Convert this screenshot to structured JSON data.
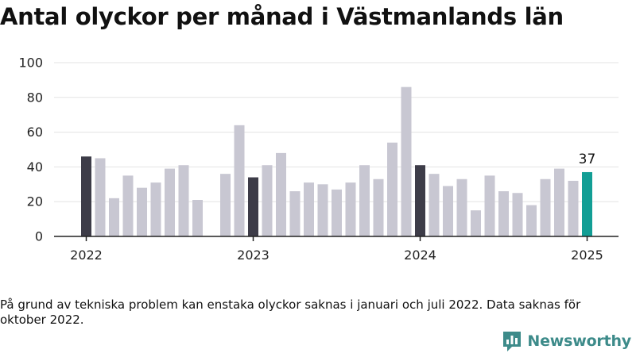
{
  "header": {
    "title": "Antal olyckor per månad i Västmanlands län"
  },
  "footer": {
    "note": "På grund av tekniska problem kan enstaka olyckor saknas i januari och juli 2022. Data saknas för oktober 2022.",
    "brand": "Newsworthy",
    "brand_icon": "newsworthy-logo-icon"
  },
  "colors": {
    "default_bar": "#c8c7d2",
    "january_bar": "#3d3c48",
    "latest_bar": "#129e95",
    "brand": "#3d8b8a",
    "grid": "#e3e3e3",
    "axis": "#222222"
  },
  "chart_data": {
    "type": "bar",
    "title": "Antal olyckor per månad i Västmanlands län",
    "xlabel": "",
    "ylabel": "",
    "ylim": [
      0,
      100
    ],
    "yticks": [
      0,
      20,
      40,
      60,
      80,
      100
    ],
    "grid": true,
    "x_tick_labels": [
      {
        "label": "2022",
        "month": "2022-01"
      },
      {
        "label": "2023",
        "month": "2023-01"
      },
      {
        "label": "2024",
        "month": "2024-01"
      },
      {
        "label": "2025",
        "month": "2025-01"
      }
    ],
    "highlight": {
      "month": "2025-01",
      "label": "37"
    },
    "months": [
      "2022-01",
      "2022-02",
      "2022-03",
      "2022-04",
      "2022-05",
      "2022-06",
      "2022-07",
      "2022-08",
      "2022-09",
      "2022-10",
      "2022-11",
      "2022-12",
      "2023-01",
      "2023-02",
      "2023-03",
      "2023-04",
      "2023-05",
      "2023-06",
      "2023-07",
      "2023-08",
      "2023-09",
      "2023-10",
      "2023-11",
      "2023-12",
      "2024-01",
      "2024-02",
      "2024-03",
      "2024-04",
      "2024-05",
      "2024-06",
      "2024-07",
      "2024-08",
      "2024-09",
      "2024-10",
      "2024-11",
      "2024-12",
      "2025-01"
    ],
    "values": [
      46,
      45,
      22,
      35,
      28,
      31,
      39,
      41,
      21,
      null,
      36,
      64,
      34,
      41,
      48,
      26,
      31,
      30,
      27,
      31,
      41,
      33,
      54,
      86,
      41,
      36,
      29,
      33,
      15,
      35,
      26,
      25,
      18,
      33,
      39,
      32,
      37
    ]
  }
}
